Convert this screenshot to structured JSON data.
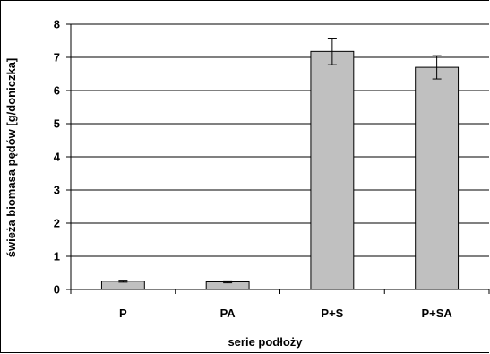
{
  "chart_data": {
    "type": "bar",
    "title": "",
    "xlabel": "serie podłoży",
    "ylabel": "świeża biomasa pędów [g/doniczka]",
    "categories": [
      "P",
      "PA",
      "P+S",
      "P+SA"
    ],
    "values": [
      0.25,
      0.23,
      7.18,
      6.7
    ],
    "errors": [
      0.03,
      0.03,
      0.4,
      0.35
    ],
    "ylim": [
      0,
      8
    ],
    "yticks": [
      0,
      1,
      2,
      3,
      4,
      5,
      6,
      7,
      8
    ],
    "grid": true,
    "legend": "none",
    "bar_color": "#c0c0c0",
    "bar_edge_color": "#000000",
    "grid_color": "#000000"
  }
}
